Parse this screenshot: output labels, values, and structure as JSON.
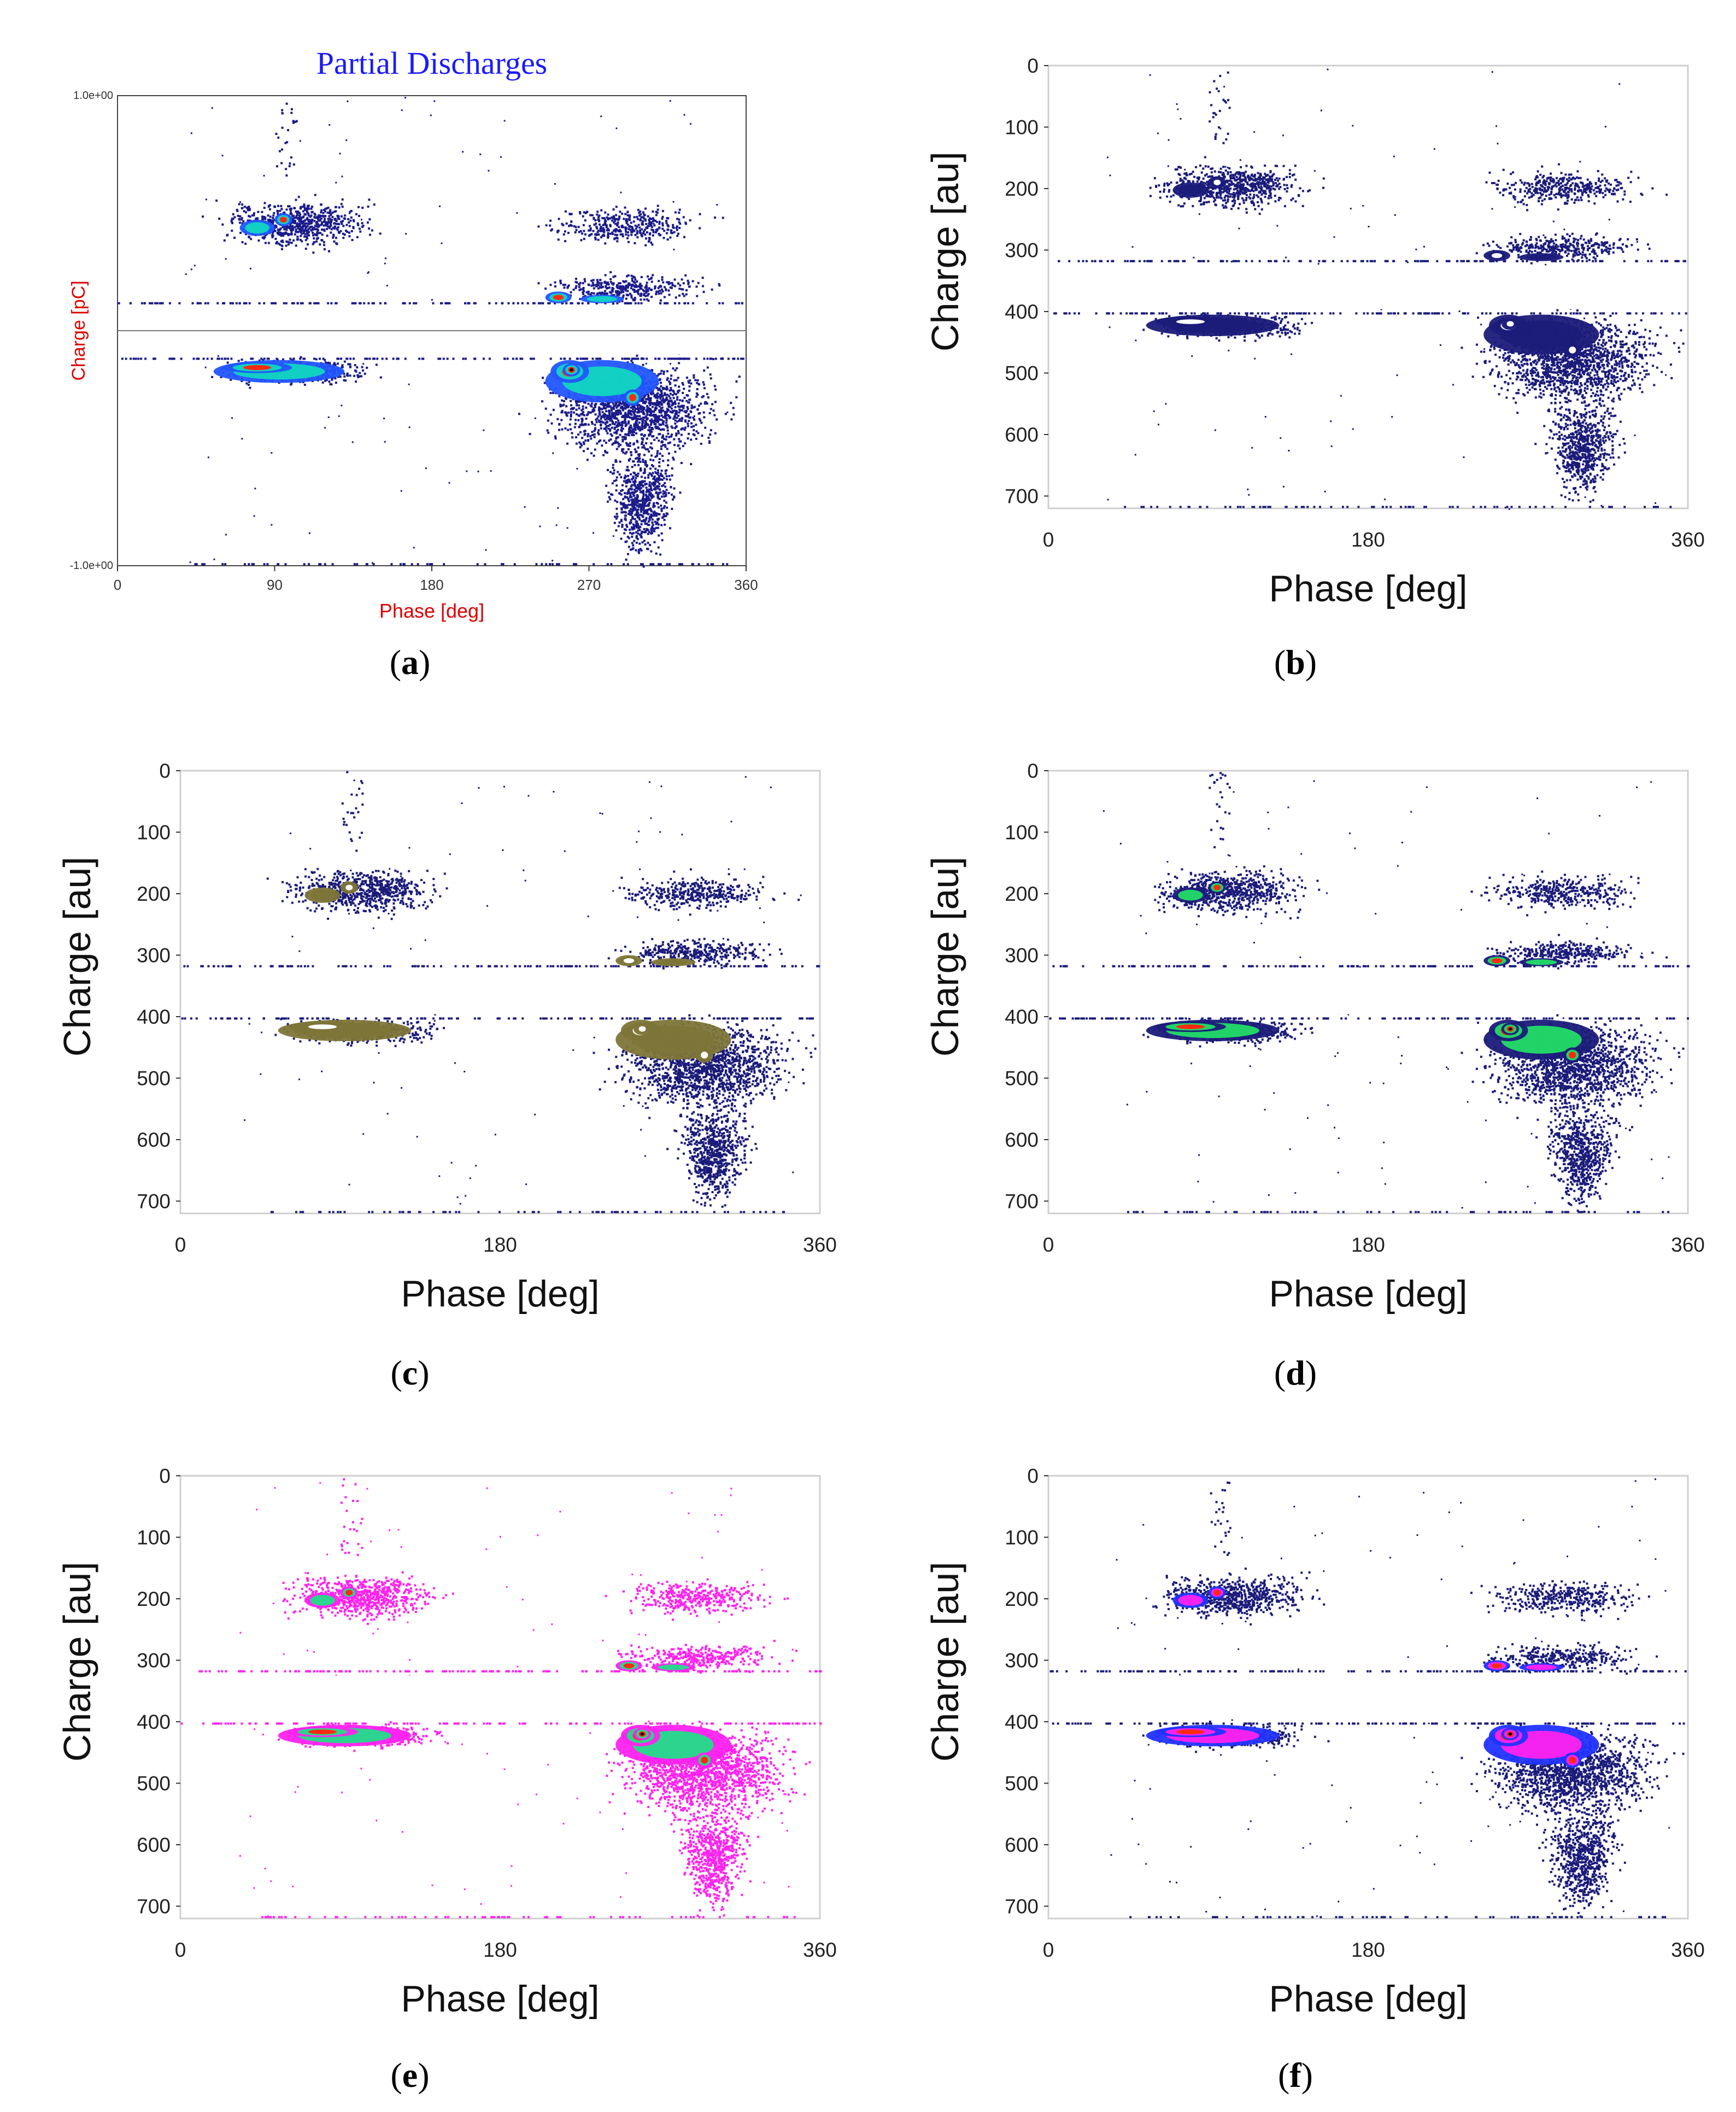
{
  "chart_data": [
    {
      "id": "a",
      "type": "scatter",
      "title": "Partial Discharges",
      "xlabel": "Phase [deg]",
      "ylabel": "Charge [pC]",
      "xlim": [
        0,
        360
      ],
      "ylim": [
        -1.0,
        1.0
      ],
      "x_ticks": [
        "0",
        "90",
        "180",
        "270",
        "360"
      ],
      "y_ticks": [
        "1.0e+00",
        "-1.0e+00"
      ],
      "colormap": "rainbow",
      "caption_letter": "a",
      "colors": {
        "title": "#1a1aff",
        "axis_label": "#e00000"
      }
    },
    {
      "id": "b",
      "type": "scatter",
      "xlabel": "Phase  [deg]",
      "ylabel": "Charge [au]",
      "xlim": [
        0,
        360
      ],
      "ylim": [
        720,
        0
      ],
      "x_ticks": [
        "0",
        "180",
        "360"
      ],
      "y_ticks": [
        "0",
        "100",
        "200",
        "300",
        "400",
        "500",
        "600",
        "700"
      ],
      "colormap": "navy-white",
      "caption_letter": "b"
    },
    {
      "id": "c",
      "type": "scatter",
      "xlabel": "Phase  [deg]",
      "ylabel": "Charge [au]",
      "xlim": [
        0,
        360
      ],
      "ylim": [
        720,
        0
      ],
      "x_ticks": [
        "0",
        "180",
        "360"
      ],
      "y_ticks": [
        "0",
        "100",
        "200",
        "300",
        "400",
        "500",
        "600",
        "700"
      ],
      "colormap": "navy-olive",
      "caption_letter": "c"
    },
    {
      "id": "d",
      "type": "scatter",
      "xlabel": "Phase  [deg]",
      "ylabel": "Charge [au]",
      "xlim": [
        0,
        360
      ],
      "ylim": [
        720,
        0
      ],
      "x_ticks": [
        "0",
        "180",
        "360"
      ],
      "y_ticks": [
        "0",
        "100",
        "200",
        "300",
        "400",
        "500",
        "600",
        "700"
      ],
      "colormap": "navy-green-red",
      "caption_letter": "d"
    },
    {
      "id": "e",
      "type": "scatter",
      "xlabel": "Phase  [deg]",
      "ylabel": "Charge [au]",
      "xlim": [
        0,
        360
      ],
      "ylim": [
        720,
        0
      ],
      "x_ticks": [
        "0",
        "180",
        "360"
      ],
      "y_ticks": [
        "0",
        "100",
        "200",
        "300",
        "400",
        "500",
        "600",
        "700"
      ],
      "colormap": "magenta-green-red",
      "caption_letter": "e"
    },
    {
      "id": "f",
      "type": "scatter",
      "xlabel": "Phase  [deg]",
      "ylabel": "Charge [au]",
      "xlim": [
        0,
        360
      ],
      "ylim": [
        720,
        0
      ],
      "x_ticks": [
        "0",
        "180",
        "360"
      ],
      "y_ticks": [
        "0",
        "100",
        "200",
        "300",
        "400",
        "500",
        "600",
        "700"
      ],
      "colormap": "navy-magenta-red",
      "caption_letter": "f"
    }
  ]
}
